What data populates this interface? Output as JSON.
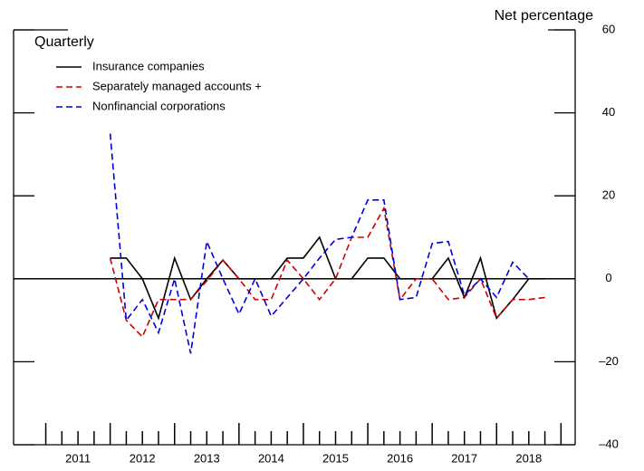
{
  "chart_data": {
    "type": "line",
    "title": "Quarterly",
    "y_axis_label": "Net percentage",
    "x": [
      2012.0,
      2012.25,
      2012.5,
      2012.75,
      2013.0,
      2013.25,
      2013.5,
      2013.75,
      2014.0,
      2014.25,
      2014.5,
      2014.75,
      2015.0,
      2015.25,
      2015.5,
      2015.75,
      2016.0,
      2016.25,
      2016.5,
      2016.75,
      2017.0,
      2017.25,
      2017.5,
      2017.75,
      2018.0,
      2018.25,
      2018.5,
      2018.75
    ],
    "series": [
      {
        "name": "Insurance companies",
        "color": "#000000",
        "dash": "solid",
        "values": [
          5,
          5,
          0,
          -9.5,
          5,
          -5,
          0,
          4.5,
          0,
          0,
          0,
          5,
          5,
          10,
          0,
          0,
          5,
          5,
          0,
          0,
          0,
          5,
          -4.5,
          5,
          -9.5,
          -5,
          0,
          0
        ]
      },
      {
        "name": "Separately managed accounts +",
        "color": "#cc0000",
        "dash": "dashed",
        "values": [
          5,
          -10,
          -14,
          -5,
          -5,
          -5,
          -0.5,
          4.5,
          0,
          -5,
          -5,
          4.5,
          0,
          -5,
          0,
          10,
          10,
          17,
          -5,
          0,
          0,
          -5,
          -4.5,
          0,
          -9.5,
          -5,
          -5,
          -4.5
        ]
      },
      {
        "name": "Nonfinancial corporations",
        "color": "#0000dd",
        "dash": "dashed",
        "values": [
          35,
          -10,
          -5,
          -13,
          0,
          -18,
          9,
          0,
          -8.5,
          0,
          -9,
          -4.5,
          0,
          5,
          9.5,
          10,
          19,
          19,
          -5,
          -4.5,
          8.5,
          9,
          -4,
          0,
          -4.5,
          4,
          0,
          null
        ]
      }
    ],
    "xlim": [
      2010.5,
      2019.22
    ],
    "xticks": [
      {
        "value": 2011.5,
        "label": "2011"
      },
      {
        "value": 2012.5,
        "label": "2012"
      },
      {
        "value": 2013.5,
        "label": "2013"
      },
      {
        "value": 2014.5,
        "label": "2014"
      },
      {
        "value": 2015.5,
        "label": "2015"
      },
      {
        "value": 2016.5,
        "label": "2016"
      },
      {
        "value": 2017.5,
        "label": "2017"
      },
      {
        "value": 2018.5,
        "label": "2018"
      }
    ],
    "ylim": [
      -40,
      60
    ],
    "yticks": [
      {
        "value": -40,
        "label": "–40"
      },
      {
        "value": -20,
        "label": "–20"
      },
      0,
      20,
      40,
      60
    ],
    "legend": "upper left"
  }
}
